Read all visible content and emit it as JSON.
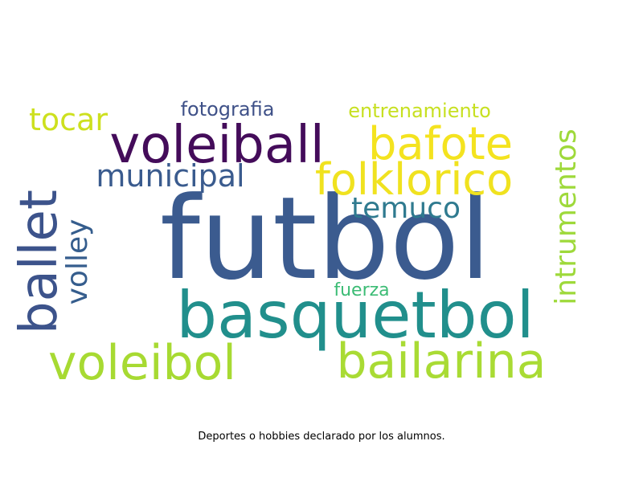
{
  "words": [
    {
      "text": "futbol",
      "color": "#3b5b8f"
    },
    {
      "text": "basquetbol",
      "color": "#218f8c"
    },
    {
      "text": "voleiball",
      "color": "#440c5a"
    },
    {
      "text": "bafote",
      "color": "#f4e31f"
    },
    {
      "text": "folklorico",
      "color": "#f0e21f"
    },
    {
      "text": "ballet",
      "color": "#3c538b"
    },
    {
      "text": "voleibol",
      "color": "#a7da32"
    },
    {
      "text": "bailarina",
      "color": "#a9db34"
    },
    {
      "text": "volley",
      "color": "#355d8d"
    },
    {
      "text": "intrumentos",
      "color": "#9ed93a"
    },
    {
      "text": "municipal",
      "color": "#3a5b8e"
    },
    {
      "text": "temuco",
      "color": "#2f7a8f"
    },
    {
      "text": "tocar",
      "color": "#cde01e"
    },
    {
      "text": "fotografia",
      "color": "#3f5188"
    },
    {
      "text": "entrenamiento",
      "color": "#c7e021"
    },
    {
      "text": "fuerza",
      "color": "#3cbc75"
    }
  ],
  "caption": "Deportes o hobbies declarado por los alumnos."
}
